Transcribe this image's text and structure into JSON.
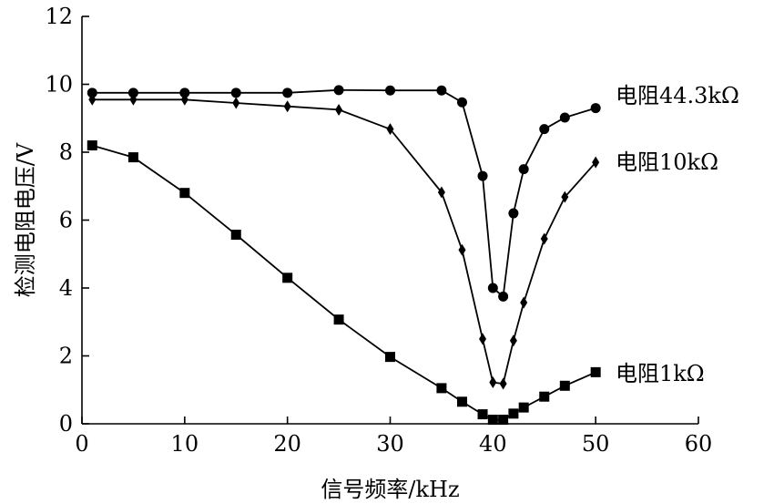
{
  "chart_data": {
    "type": "line",
    "xlabel": "信号频率/kHz",
    "ylabel": "检测电阻电压/V",
    "xlim": [
      0,
      60
    ],
    "ylim": [
      0,
      12
    ],
    "xticks": [
      0,
      10,
      20,
      30,
      40,
      50,
      60
    ],
    "yticks": [
      0,
      2,
      4,
      6,
      8,
      10,
      12
    ],
    "grid": false,
    "series": [
      {
        "name": "电阻44.3kΩ",
        "marker": "circle",
        "x": [
          1,
          5,
          10,
          15,
          20,
          25,
          30,
          35,
          37,
          39,
          40,
          41,
          42,
          43,
          45,
          47,
          50
        ],
        "y": [
          9.75,
          9.75,
          9.75,
          9.75,
          9.75,
          9.83,
          9.82,
          9.82,
          9.47,
          7.3,
          4.0,
          3.75,
          6.2,
          7.5,
          8.68,
          9.02,
          9.3
        ]
      },
      {
        "name": "电阻10kΩ",
        "marker": "diamond",
        "x": [
          1,
          5,
          10,
          15,
          20,
          25,
          30,
          35,
          37,
          39,
          40,
          41,
          42,
          43,
          45,
          47,
          50
        ],
        "y": [
          9.55,
          9.55,
          9.55,
          9.45,
          9.35,
          9.25,
          8.68,
          6.82,
          5.12,
          2.5,
          1.22,
          1.18,
          2.45,
          3.57,
          5.45,
          6.68,
          7.7
        ]
      },
      {
        "name": "电阻1kΩ",
        "marker": "square",
        "x": [
          1,
          5,
          10,
          15,
          20,
          25,
          30,
          35,
          37,
          39,
          40,
          41,
          42,
          43,
          45,
          47,
          50
        ],
        "y": [
          8.2,
          7.85,
          6.8,
          5.57,
          4.3,
          3.07,
          1.97,
          1.05,
          0.65,
          0.28,
          0.12,
          0.12,
          0.3,
          0.48,
          0.8,
          1.12,
          1.52
        ]
      }
    ]
  }
}
